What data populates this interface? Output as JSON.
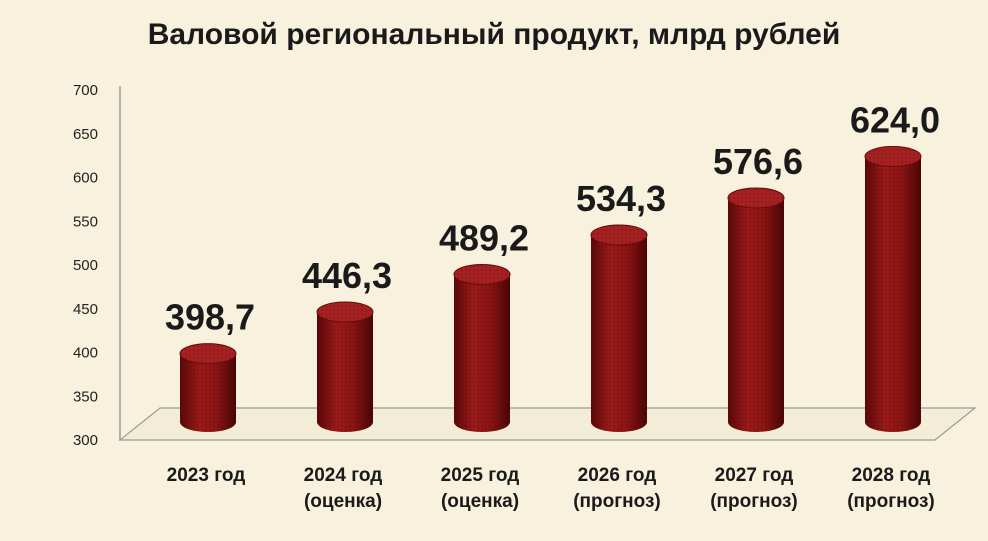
{
  "chart_data": {
    "type": "bar",
    "title": "Валовой региональный продукт, млрд рублей",
    "categories": [
      [
        "2023 год"
      ],
      [
        "2024 год",
        "(оценка)"
      ],
      [
        "2025 год",
        "(оценка)"
      ],
      [
        "2026 год",
        "(прогноз)"
      ],
      [
        "2027 год",
        "(прогноз)"
      ],
      [
        "2028 год",
        "(прогноз)"
      ]
    ],
    "values": [
      398.7,
      446.3,
      489.2,
      534.3,
      576.6,
      624.0
    ],
    "value_labels": [
      "398,7",
      "446,3",
      "489,2",
      "534,3",
      "576,6",
      "624,0"
    ],
    "ylim": [
      300,
      700
    ],
    "yticks": [
      300,
      350,
      400,
      450,
      500,
      550,
      600,
      650,
      700
    ],
    "xlabel": "",
    "ylabel": "",
    "grid": false,
    "legend": "none",
    "colors": {
      "bar": "#8b1414",
      "bar_dark": "#4a0606",
      "background": "#f7f1de"
    }
  }
}
